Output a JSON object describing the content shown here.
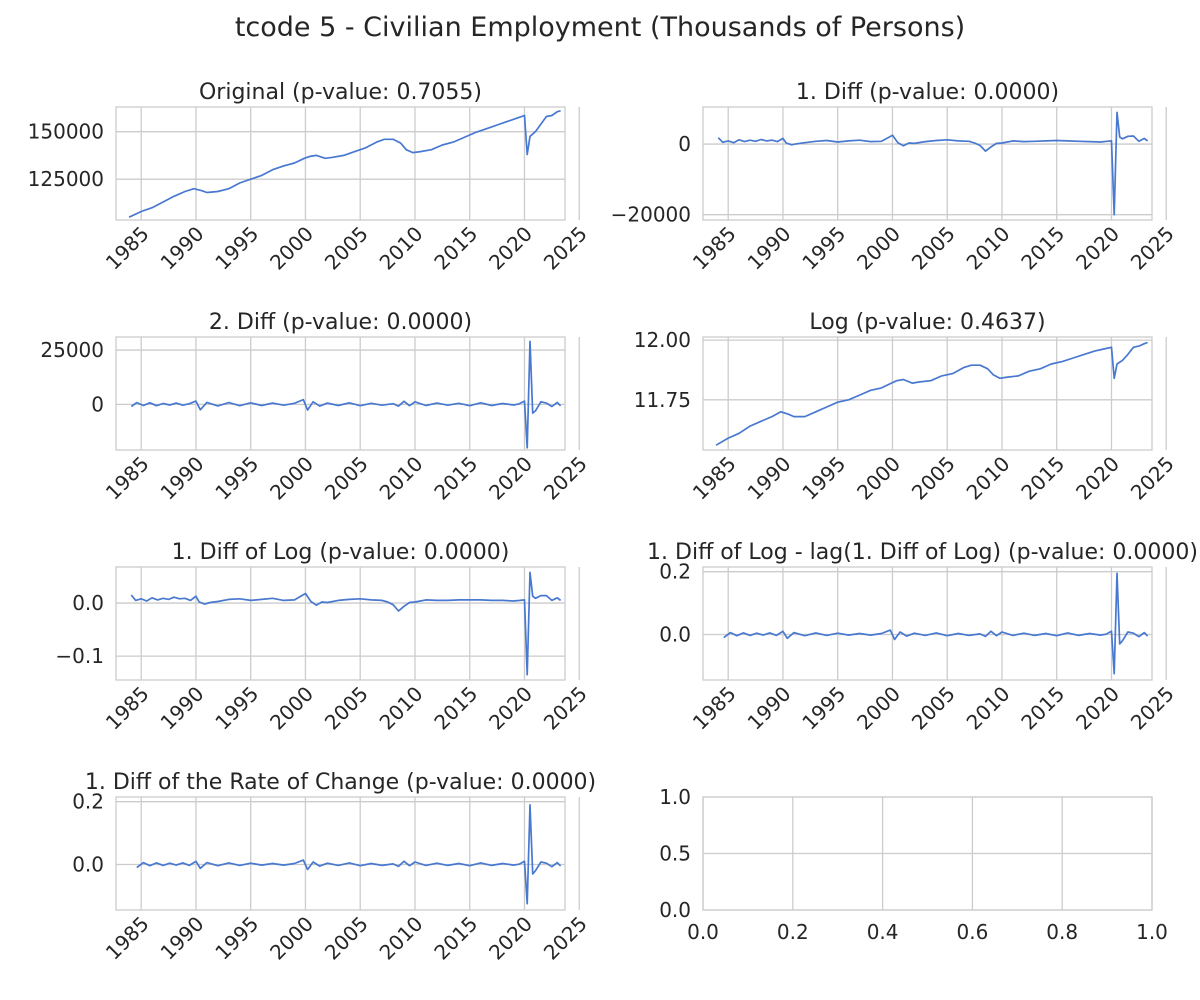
{
  "figure": {
    "title": "tcode 5 - Civilian Employment (Thousands of Persons)"
  },
  "colors": {
    "line": "#4878d0",
    "grid": "#cccccc",
    "text": "#262626"
  },
  "chart_data": [
    {
      "type": "line",
      "title": "Original (p-value: 0.7055)",
      "xlim": [
        1982.7,
        2023.7
      ],
      "ylim": [
        103500,
        163000
      ],
      "xticks": [
        1985,
        1990,
        1995,
        2000,
        2005,
        2010,
        2015,
        2020,
        2025
      ],
      "yticks": [
        125000,
        150000
      ],
      "ytick_labels": [
        "125000",
        "150000"
      ],
      "x": [
        1983.9,
        1985,
        1986,
        1987,
        1988,
        1989,
        1989.8,
        1990.5,
        1991,
        1992,
        1993,
        1994,
        1995,
        1996,
        1997,
        1998,
        1999,
        1999.9,
        2000.4,
        2001,
        2001.8,
        2002.5,
        2003.5,
        2004.5,
        2005.5,
        2006.5,
        2007.2,
        2008,
        2008.7,
        2009.2,
        2009.8,
        2010.5,
        2011.5,
        2012.5,
        2013.5,
        2014.5,
        2015.5,
        2016.5,
        2017.5,
        2018.5,
        2019.5,
        2020.0,
        2020.25,
        2020.5,
        2021,
        2021.5,
        2022,
        2022.5,
        2023.0,
        2023.3
      ],
      "y": [
        105000,
        108000,
        110000,
        113000,
        116000,
        118500,
        120000,
        119000,
        118000,
        118500,
        120000,
        123000,
        125000,
        127000,
        130000,
        132000,
        133500,
        136000,
        137000,
        137500,
        136000,
        136500,
        137500,
        139500,
        141500,
        144500,
        146000,
        146000,
        144000,
        140500,
        139000,
        139500,
        140500,
        143000,
        144500,
        147000,
        149500,
        151500,
        153500,
        155500,
        157500,
        158500,
        138000,
        147500,
        150000,
        154000,
        158000,
        158500,
        160500,
        161000
      ]
    },
    {
      "type": "line",
      "title": "1. Diff (p-value: 0.0000)",
      "xlim": [
        1982.7,
        2023.7
      ],
      "ylim": [
        -21500,
        10500
      ],
      "xticks": [
        1985,
        1990,
        1995,
        2000,
        2005,
        2010,
        2015,
        2020,
        2025
      ],
      "yticks": [
        -20000,
        0
      ],
      "ytick_labels": [
        "−20000",
        "0"
      ],
      "x": [
        1984.1,
        1984.5,
        1985,
        1985.5,
        1986,
        1986.5,
        1987,
        1987.5,
        1988,
        1988.5,
        1989,
        1989.5,
        1990,
        1990.3,
        1990.8,
        1991.3,
        1992,
        1993,
        1994,
        1995,
        1996,
        1997,
        1998,
        1999,
        2000,
        2000.5,
        2001,
        2001.5,
        2002,
        2003,
        2004,
        2005,
        2006,
        2007,
        2007.5,
        2008,
        2008.5,
        2009,
        2009.5,
        2010,
        2010.5,
        2011,
        2012,
        2013,
        2014,
        2015,
        2016,
        2017,
        2018,
        2019,
        2019.6,
        2020.0,
        2020.25,
        2020.5,
        2020.75,
        2021,
        2021.5,
        2022,
        2022.5,
        2023.0,
        2023.3
      ],
      "y": [
        1800,
        500,
        900,
        400,
        1200,
        700,
        1100,
        800,
        1300,
        900,
        1100,
        700,
        1600,
        300,
        -200,
        100,
        400,
        800,
        1000,
        600,
        900,
        1100,
        700,
        800,
        2500,
        400,
        -500,
        300,
        200,
        700,
        1000,
        1200,
        900,
        800,
        300,
        -400,
        -2000,
        -800,
        200,
        300,
        600,
        900,
        700,
        800,
        900,
        1000,
        900,
        800,
        700,
        600,
        800,
        900,
        -20000,
        9000,
        2000,
        1500,
        2200,
        2300,
        800,
        1600,
        900
      ]
    },
    {
      "type": "line",
      "title": "2. Diff (p-value: 0.0000)",
      "xlim": [
        1982.7,
        2023.7
      ],
      "ylim": [
        -21000,
        31000
      ],
      "xticks": [
        1985,
        1990,
        1995,
        2000,
        2005,
        2010,
        2015,
        2020,
        2025
      ],
      "yticks": [
        0,
        25000
      ],
      "ytick_labels": [
        "0",
        "25000"
      ],
      "x": [
        1984.1,
        1984.6,
        1985.2,
        1985.8,
        1986.4,
        1987,
        1987.6,
        1988.2,
        1988.8,
        1989.4,
        1990,
        1990.4,
        1991,
        1992,
        1993,
        1994,
        1995,
        1996,
        1997,
        1998,
        1999,
        1999.8,
        2000.2,
        2000.7,
        2001.3,
        2002,
        2003,
        2004,
        2005,
        2006,
        2007,
        2008,
        2008.5,
        2009,
        2009.5,
        2010,
        2011,
        2012,
        2013,
        2014,
        2015,
        2016,
        2017,
        2018,
        2019,
        2019.5,
        2020.0,
        2020.25,
        2020.5,
        2020.75,
        2021,
        2021.5,
        2022,
        2022.5,
        2023.0,
        2023.3
      ],
      "y": [
        -1000,
        800,
        -500,
        700,
        -600,
        400,
        -300,
        600,
        -400,
        300,
        1500,
        -2500,
        900,
        -700,
        800,
        -600,
        700,
        -500,
        600,
        -400,
        500,
        2200,
        -2600,
        1200,
        -800,
        600,
        -500,
        700,
        -600,
        500,
        -400,
        300,
        -800,
        1400,
        -600,
        1200,
        -500,
        600,
        -400,
        500,
        -600,
        700,
        -500,
        400,
        -300,
        200,
        1500,
        -20000,
        29000,
        -4000,
        -3000,
        1200,
        600,
        -1000,
        900,
        -700
      ]
    },
    {
      "type": "line",
      "title": "Log (p-value: 0.4637)",
      "xlim": [
        1982.7,
        2023.7
      ],
      "ylim": [
        11.54,
        12.013
      ],
      "xticks": [
        1985,
        1990,
        1995,
        2000,
        2005,
        2010,
        2015,
        2020,
        2025
      ],
      "yticks": [
        11.75,
        12.0
      ],
      "ytick_labels": [
        "11.75",
        "12.00"
      ],
      "x": [
        1983.9,
        1985,
        1986,
        1987,
        1988,
        1989,
        1989.8,
        1990.5,
        1991,
        1992,
        1993,
        1994,
        1995,
        1996,
        1997,
        1998,
        1999,
        1999.9,
        2000.4,
        2001,
        2001.8,
        2002.5,
        2003.5,
        2004.5,
        2005.5,
        2006.5,
        2007.2,
        2008,
        2008.7,
        2009.2,
        2009.8,
        2010.5,
        2011.5,
        2012.5,
        2013.5,
        2014.5,
        2015.5,
        2016.5,
        2017.5,
        2018.5,
        2019.5,
        2020.0,
        2020.25,
        2020.5,
        2021,
        2021.5,
        2022,
        2022.5,
        2023.0,
        2023.3
      ],
      "y": [
        11.56,
        11.59,
        11.61,
        11.64,
        11.66,
        11.68,
        11.7,
        11.69,
        11.68,
        11.68,
        11.7,
        11.72,
        11.74,
        11.75,
        11.77,
        11.79,
        11.8,
        11.82,
        11.83,
        11.835,
        11.82,
        11.825,
        11.83,
        11.85,
        11.86,
        11.885,
        11.895,
        11.895,
        11.88,
        11.855,
        11.84,
        11.845,
        11.85,
        11.87,
        11.88,
        11.9,
        11.91,
        11.925,
        11.94,
        11.955,
        11.965,
        11.97,
        11.84,
        11.9,
        11.915,
        11.94,
        11.97,
        11.975,
        11.985,
        11.99
      ]
    },
    {
      "type": "line",
      "title": "1. Diff of Log (p-value: 0.0000)",
      "xlim": [
        1982.7,
        2023.7
      ],
      "ylim": [
        -0.145,
        0.068
      ],
      "xticks": [
        1985,
        1990,
        1995,
        2000,
        2005,
        2010,
        2015,
        2020,
        2025
      ],
      "yticks": [
        -0.1,
        0.0
      ],
      "ytick_labels": [
        "−0.1",
        "0.0"
      ],
      "x": [
        1984.1,
        1984.5,
        1985,
        1985.5,
        1986,
        1986.5,
        1987,
        1987.5,
        1988,
        1988.5,
        1989,
        1989.5,
        1990,
        1990.3,
        1990.8,
        1991.3,
        1992,
        1993,
        1994,
        1995,
        1996,
        1997,
        1998,
        1999,
        2000,
        2000.5,
        2001,
        2001.5,
        2002,
        2003,
        2004,
        2005,
        2006,
        2007,
        2007.5,
        2008,
        2008.5,
        2009,
        2009.5,
        2010,
        2010.5,
        2011,
        2012,
        2013,
        2014,
        2015,
        2016,
        2017,
        2018,
        2019,
        2019.6,
        2020.0,
        2020.25,
        2020.5,
        2020.75,
        2021,
        2021.5,
        2022,
        2022.5,
        2023.0,
        2023.3
      ],
      "y": [
        0.015,
        0.005,
        0.008,
        0.004,
        0.01,
        0.006,
        0.009,
        0.007,
        0.011,
        0.008,
        0.009,
        0.005,
        0.013,
        0.002,
        -0.002,
        0.001,
        0.003,
        0.007,
        0.008,
        0.005,
        0.007,
        0.009,
        0.005,
        0.006,
        0.018,
        0.003,
        -0.004,
        0.002,
        0.001,
        0.005,
        0.007,
        0.008,
        0.006,
        0.005,
        0.002,
        -0.003,
        -0.015,
        -0.006,
        0.001,
        0.002,
        0.004,
        0.006,
        0.005,
        0.005,
        0.006,
        0.006,
        0.006,
        0.005,
        0.005,
        0.004,
        0.005,
        0.006,
        -0.135,
        0.058,
        0.013,
        0.009,
        0.014,
        0.014,
        0.005,
        0.01,
        0.005
      ]
    },
    {
      "type": "line",
      "title": "1. Diff of Log - lag(1. Diff of Log) (p-value: 0.0000)",
      "xlim": [
        1982.7,
        2023.7
      ],
      "ylim": [
        -0.145,
        0.215
      ],
      "xticks": [
        1985,
        1990,
        1995,
        2000,
        2005,
        2010,
        2015,
        2020,
        2025
      ],
      "yticks": [
        0.0,
        0.2
      ],
      "ytick_labels": [
        "0.0",
        "0.2"
      ],
      "x": [
        1984.6,
        1985.2,
        1985.8,
        1986.4,
        1987,
        1987.6,
        1988.2,
        1988.8,
        1989.4,
        1990,
        1990.4,
        1991,
        1992,
        1993,
        1994,
        1995,
        1996,
        1997,
        1998,
        1999,
        1999.8,
        2000.2,
        2000.7,
        2001.3,
        2002,
        2003,
        2004,
        2005,
        2006,
        2007,
        2008,
        2008.5,
        2009,
        2009.5,
        2010,
        2011,
        2012,
        2013,
        2014,
        2015,
        2016,
        2017,
        2018,
        2019,
        2019.5,
        2020.0,
        2020.25,
        2020.5,
        2020.75,
        2021,
        2021.5,
        2022,
        2022.5,
        2023.0,
        2023.3
      ],
      "y": [
        -0.01,
        0.006,
        -0.004,
        0.005,
        -0.003,
        0.004,
        -0.002,
        0.005,
        -0.003,
        0.01,
        -0.012,
        0.006,
        -0.004,
        0.005,
        -0.003,
        0.004,
        -0.002,
        0.003,
        -0.002,
        0.003,
        0.014,
        -0.016,
        0.008,
        -0.005,
        0.004,
        -0.003,
        0.005,
        -0.004,
        0.003,
        -0.003,
        0.002,
        -0.006,
        0.01,
        -0.004,
        0.008,
        -0.003,
        0.004,
        -0.003,
        0.003,
        -0.004,
        0.005,
        -0.003,
        0.003,
        -0.002,
        0.001,
        0.01,
        -0.125,
        0.195,
        -0.03,
        -0.02,
        0.008,
        0.004,
        -0.007,
        0.006,
        -0.005
      ]
    },
    {
      "type": "line",
      "title": "1. Diff of the Rate of Change (p-value: 0.0000)",
      "xlim": [
        1982.7,
        2023.7
      ],
      "ylim": [
        -0.145,
        0.215
      ],
      "xticks": [
        1985,
        1990,
        1995,
        2000,
        2005,
        2010,
        2015,
        2020,
        2025
      ],
      "yticks": [
        0.0,
        0.2
      ],
      "ytick_labels": [
        "0.0",
        "0.2"
      ],
      "x": [
        1984.6,
        1985.2,
        1985.8,
        1986.4,
        1987,
        1987.6,
        1988.2,
        1988.8,
        1989.4,
        1990,
        1990.4,
        1991,
        1992,
        1993,
        1994,
        1995,
        1996,
        1997,
        1998,
        1999,
        1999.8,
        2000.2,
        2000.7,
        2001.3,
        2002,
        2003,
        2004,
        2005,
        2006,
        2007,
        2008,
        2008.5,
        2009,
        2009.5,
        2010,
        2011,
        2012,
        2013,
        2014,
        2015,
        2016,
        2017,
        2018,
        2019,
        2019.5,
        2020.0,
        2020.25,
        2020.5,
        2020.75,
        2021,
        2021.5,
        2022,
        2022.5,
        2023.0,
        2023.3
      ],
      "y": [
        -0.01,
        0.006,
        -0.004,
        0.005,
        -0.003,
        0.004,
        -0.002,
        0.005,
        -0.003,
        0.01,
        -0.012,
        0.006,
        -0.004,
        0.005,
        -0.003,
        0.004,
        -0.002,
        0.003,
        -0.002,
        0.003,
        0.014,
        -0.016,
        0.008,
        -0.005,
        0.004,
        -0.003,
        0.005,
        -0.004,
        0.003,
        -0.003,
        0.002,
        -0.006,
        0.01,
        -0.004,
        0.008,
        -0.003,
        0.004,
        -0.003,
        0.003,
        -0.004,
        0.005,
        -0.003,
        0.003,
        -0.002,
        0.001,
        0.01,
        -0.125,
        0.19,
        -0.03,
        -0.02,
        0.008,
        0.004,
        -0.007,
        0.006,
        -0.005
      ]
    },
    {
      "type": "line",
      "title": "",
      "xlim": [
        0.0,
        1.0
      ],
      "ylim": [
        0.0,
        1.0
      ],
      "xticks": [
        0.0,
        0.2,
        0.4,
        0.6,
        0.8,
        1.0
      ],
      "yticks": [
        0.0,
        0.5,
        1.0
      ],
      "xtick_labels": [
        "0.0",
        "0.2",
        "0.4",
        "0.6",
        "0.8",
        "1.0"
      ],
      "ytick_labels": [
        "0.0",
        "0.5",
        "1.0"
      ],
      "x": [],
      "y": []
    }
  ]
}
